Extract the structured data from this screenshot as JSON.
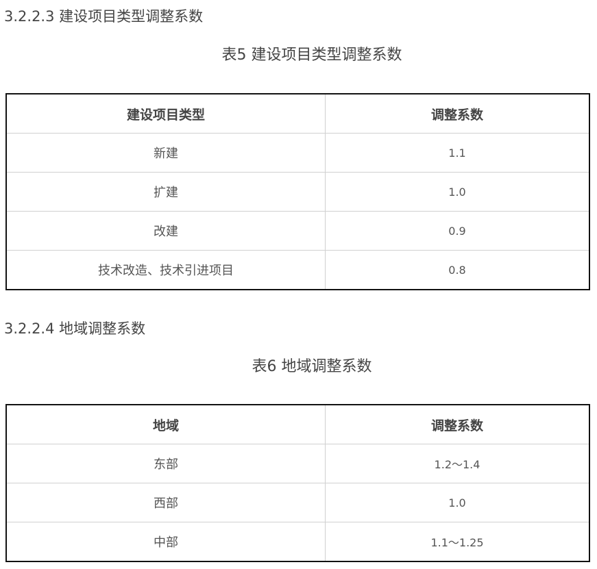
{
  "section1": {
    "heading": "3.2.2.3 建设项目类型调整系数",
    "caption": "表5 建设项目类型调整系数",
    "headers": [
      "建设项目类型",
      "调整系数"
    ],
    "rows": [
      [
        "新建",
        "1.1"
      ],
      [
        "扩建",
        "1.0"
      ],
      [
        "改建",
        "0.9"
      ],
      [
        "技术改造、技术引进项目",
        "0.8"
      ]
    ]
  },
  "section2": {
    "heading": "3.2.2.4 地域调整系数",
    "caption": "表6 地域调整系数",
    "headers": [
      "地域",
      "调整系数"
    ],
    "rows": [
      [
        "东部",
        "1.2～1.4"
      ],
      [
        "西部",
        "1.0"
      ],
      [
        "中部",
        "1.1～1.25"
      ]
    ]
  }
}
